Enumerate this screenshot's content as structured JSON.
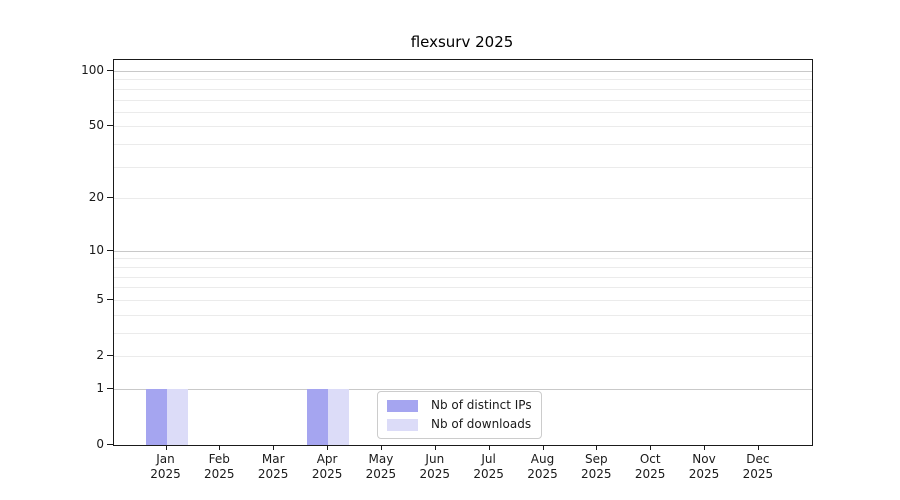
{
  "chart_data": {
    "type": "bar",
    "title": "flexsurv 2025",
    "categories": [
      {
        "month": "Jan",
        "year": "2025"
      },
      {
        "month": "Feb",
        "year": "2025"
      },
      {
        "month": "Mar",
        "year": "2025"
      },
      {
        "month": "Apr",
        "year": "2025"
      },
      {
        "month": "May",
        "year": "2025"
      },
      {
        "month": "Jun",
        "year": "2025"
      },
      {
        "month": "Jul",
        "year": "2025"
      },
      {
        "month": "Aug",
        "year": "2025"
      },
      {
        "month": "Sep",
        "year": "2025"
      },
      {
        "month": "Oct",
        "year": "2025"
      },
      {
        "month": "Nov",
        "year": "2025"
      },
      {
        "month": "Dec",
        "year": "2025"
      }
    ],
    "series": [
      {
        "name": "Nb of distinct IPs",
        "color": "#a5a5f0",
        "values": [
          1,
          0,
          0,
          1,
          0,
          0,
          0,
          0,
          0,
          0,
          0,
          0
        ]
      },
      {
        "name": "Nb of downloads",
        "color": "#dcdcf8",
        "values": [
          1,
          0,
          0,
          1,
          0,
          0,
          0,
          0,
          0,
          0,
          0,
          0
        ]
      }
    ],
    "y_axis": {
      "scale": "log1p",
      "ticks": [
        0,
        1,
        2,
        5,
        10,
        20,
        50,
        100
      ],
      "ylim": [
        0,
        115
      ],
      "major_gridlines": [
        1,
        10,
        100
      ],
      "minor_gridlines": [
        2,
        3,
        4,
        5,
        6,
        7,
        8,
        9,
        20,
        30,
        40,
        50,
        60,
        70,
        80,
        90
      ],
      "grid": true
    },
    "xlabel": "",
    "ylabel": "",
    "legend_position": "lower center"
  },
  "colors": {
    "bar_distinct_ips": "#a5a5f0",
    "bar_downloads": "#dcdcf8",
    "major_grid": "#c9c9c9",
    "minor_grid": "#ebebeb",
    "spine": "#1a1a1a"
  }
}
